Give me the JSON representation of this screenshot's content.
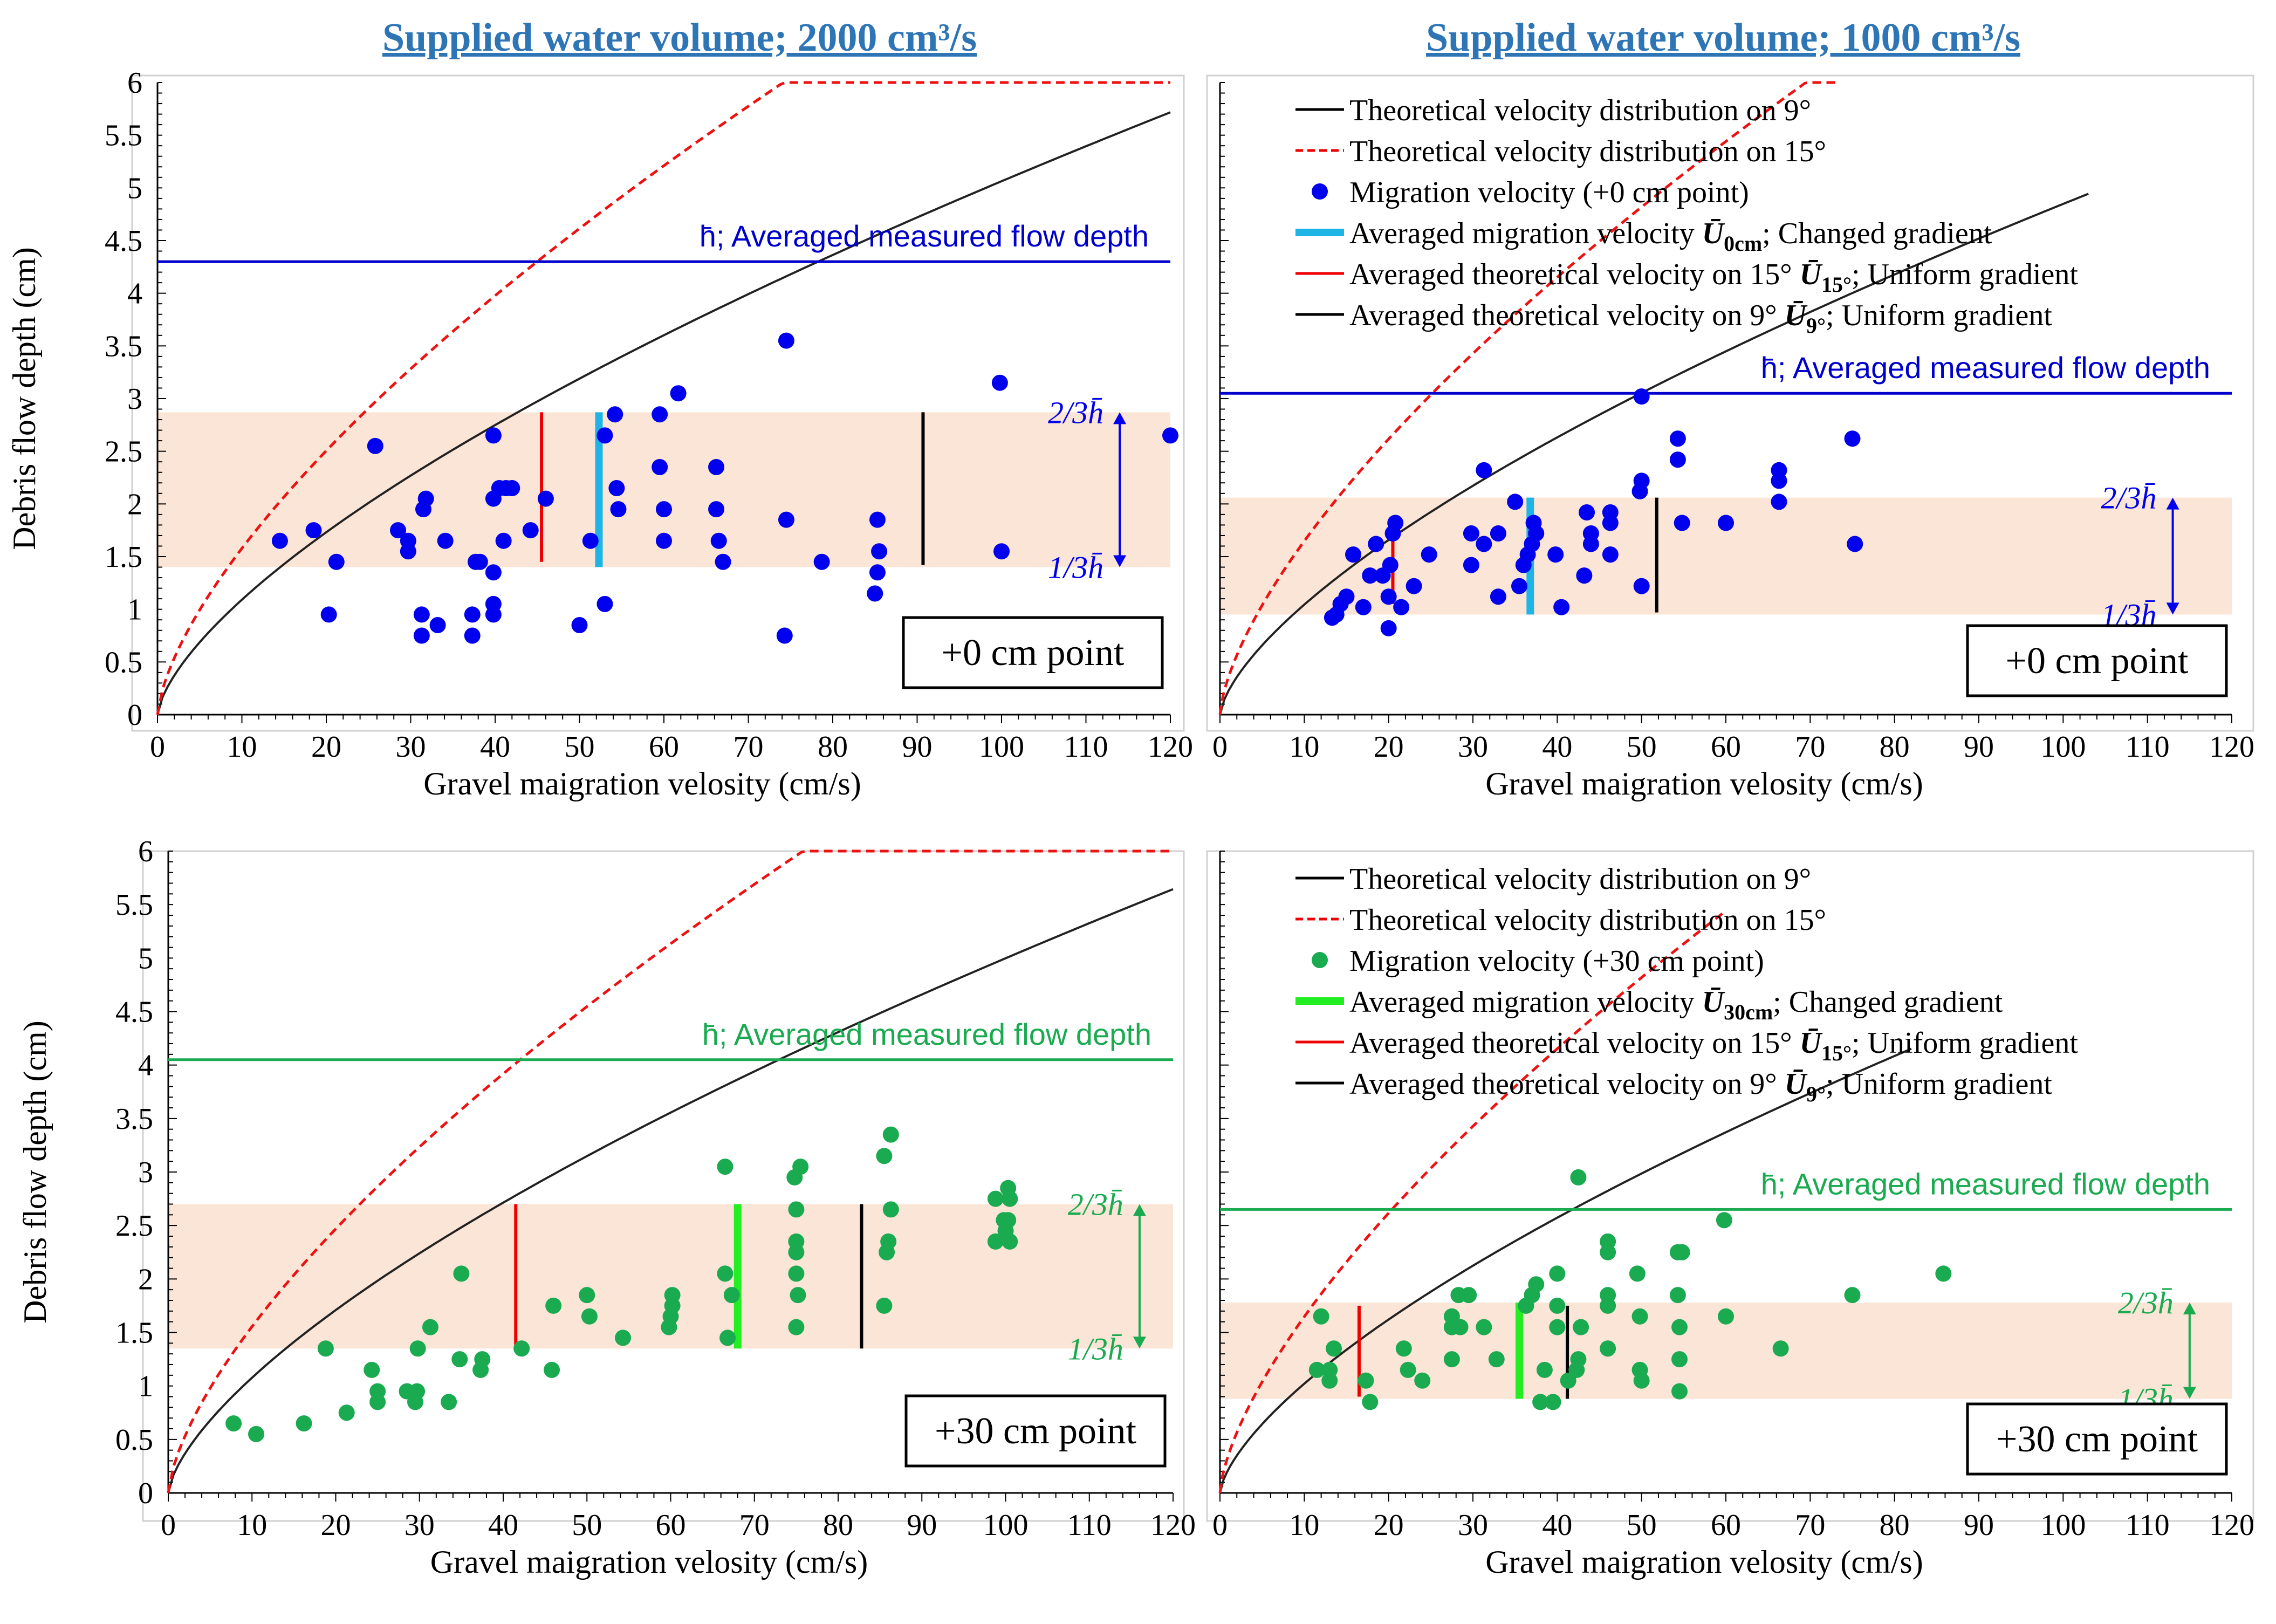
{
  "headings": {
    "left": "Supplied water volume; 2000 cm³/s",
    "right": "Supplied water volume; 1000 cm³/s"
  },
  "chart_data": [
    {
      "type": "scatter",
      "id": "tl",
      "title": "",
      "xlabel": "Gravel maigration velosity (cm/s)",
      "ylabel": "Debris flow depth (cm)",
      "xlim": [
        0,
        120
      ],
      "ylim": [
        0,
        6
      ],
      "xticks": [
        "0",
        "10",
        "20",
        "30",
        "40",
        "50",
        "60",
        "70",
        "80",
        "90",
        "100",
        "110",
        "120"
      ],
      "yticks": [
        "0",
        "0.5",
        "1",
        "1.5",
        "2",
        "2.5",
        "3",
        "3.5",
        "4",
        "4.5",
        "5",
        "5.5",
        "6"
      ],
      "point_label": "+0 cm point",
      "point_color": "#0000EE",
      "band": [
        1.4,
        2.87
      ],
      "band_labels": {
        "upper": "2/3h̄",
        "lower": "1/3h̄"
      },
      "band_arrow_x": 114,
      "hbar": {
        "y": 4.3,
        "label": "h̄; Averaged measured flow depth",
        "color": "#0000CC"
      },
      "curves": {
        "theory9": {
          "coef": 0.235,
          "xmax": 120
        },
        "theory15": {
          "coef": 0.34,
          "xmax": 120
        }
      },
      "vlines": [
        {
          "name": "U15",
          "x": 45.5,
          "y0": 1.45,
          "y1": 2.87,
          "color": "#EE0000"
        },
        {
          "name": "U0cm",
          "x": 52.3,
          "y0": 1.4,
          "y1": 2.87,
          "color": "#1FB4E6"
        },
        {
          "name": "U9",
          "x": 90.7,
          "y0": 1.42,
          "y1": 2.87,
          "color": "#000000"
        }
      ],
      "points": [
        [
          14.5,
          1.65
        ],
        [
          18.5,
          1.75
        ],
        [
          20.3,
          0.95
        ],
        [
          21.2,
          1.45
        ],
        [
          25.8,
          2.55
        ],
        [
          28.5,
          1.75
        ],
        [
          29.7,
          1.55
        ],
        [
          29.7,
          1.65
        ],
        [
          31.3,
          0.95
        ],
        [
          31.3,
          0.75
        ],
        [
          31.5,
          1.95
        ],
        [
          31.8,
          2.05
        ],
        [
          33.2,
          0.85
        ],
        [
          34.1,
          1.65
        ],
        [
          37.3,
          0.95
        ],
        [
          37.3,
          0.75
        ],
        [
          37.7,
          1.45
        ],
        [
          38.2,
          1.45
        ],
        [
          39.8,
          1.05
        ],
        [
          39.8,
          0.95
        ],
        [
          39.8,
          1.35
        ],
        [
          39.8,
          2.65
        ],
        [
          39.8,
          2.05
        ],
        [
          40.5,
          2.15
        ],
        [
          41.0,
          1.65
        ],
        [
          41.3,
          2.15
        ],
        [
          42.0,
          2.15
        ],
        [
          44.2,
          1.75
        ],
        [
          46.0,
          2.05
        ],
        [
          50.0,
          0.85
        ],
        [
          51.3,
          1.65
        ],
        [
          53.0,
          2.65
        ],
        [
          53.0,
          1.05
        ],
        [
          54.2,
          2.85
        ],
        [
          54.4,
          2.15
        ],
        [
          54.6,
          1.95
        ],
        [
          59.5,
          2.85
        ],
        [
          59.5,
          2.35
        ],
        [
          60.0,
          1.65
        ],
        [
          60.0,
          1.95
        ],
        [
          61.7,
          3.05
        ],
        [
          66.2,
          2.35
        ],
        [
          66.2,
          1.95
        ],
        [
          66.5,
          1.65
        ],
        [
          67.0,
          1.45
        ],
        [
          74.5,
          3.55
        ],
        [
          74.5,
          1.85
        ],
        [
          74.3,
          0.75
        ],
        [
          78.7,
          1.45
        ],
        [
          85.3,
          1.85
        ],
        [
          85.5,
          1.55
        ],
        [
          85.3,
          1.35
        ],
        [
          85.0,
          1.15
        ],
        [
          99.8,
          3.15
        ],
        [
          100.0,
          1.55
        ],
        [
          120.0,
          2.65
        ]
      ]
    },
    {
      "type": "scatter",
      "id": "tr",
      "title": "",
      "xlabel": "Gravel maigration velosity (cm/s)",
      "ylabel": "",
      "xlim": [
        0,
        120
      ],
      "ylim": [
        0,
        6
      ],
      "xticks": [
        "0",
        "10",
        "20",
        "30",
        "40",
        "50",
        "60",
        "70",
        "80",
        "90",
        "100",
        "110",
        "120"
      ],
      "point_label": "+0 cm point",
      "point_color": "#0000EE",
      "band": [
        0.95,
        2.06
      ],
      "band_labels": {
        "upper": "2/3h̄",
        "lower": "1/3h̄"
      },
      "band_arrow_x": 113,
      "hbar": {
        "y": 3.05,
        "label": "h̄; Averaged measured flow depth",
        "color": "#0000CC"
      },
      "curves": {
        "theory9": {
          "coef": 0.225,
          "xmax": 103
        },
        "theory15": {
          "coef": 0.355,
          "xmax": 73
        }
      },
      "vlines": [
        {
          "name": "U15",
          "x": 20.5,
          "y0": 1.05,
          "y1": 1.85,
          "color": "#EE0000"
        },
        {
          "name": "U0cm",
          "x": 36.8,
          "y0": 0.95,
          "y1": 2.06,
          "color": "#1FB4E6"
        },
        {
          "name": "U9",
          "x": 51.8,
          "y0": 0.97,
          "y1": 2.06,
          "color": "#000000"
        }
      ],
      "legend": [
        {
          "kind": "line",
          "color": "#000000",
          "label": "Theoretical velocity distribution on 9°"
        },
        {
          "kind": "dash",
          "color": "#EE0000",
          "label": "Theoretical velocity distribution on 15°"
        },
        {
          "kind": "dot",
          "color": "#0000EE",
          "label": "Migration velocity (+0 cm point)"
        },
        {
          "kind": "bar",
          "color": "#1FB4E6",
          "label": "Averaged migration velocity ",
          "math": "Ū",
          "sub": "0cm",
          "tail": "; Changed gradient"
        },
        {
          "kind": "line",
          "color": "#EE0000",
          "label": "Averaged theoretical velocity on 15° ",
          "math": "Ū",
          "sub": "15°",
          "tail": "; Uniform gradient"
        },
        {
          "kind": "line",
          "color": "#000000",
          "label": "Averaged theoretical velocity on 9° ",
          "math": "Ū",
          "sub": "9°",
          "tail": "; Uniform gradient"
        }
      ],
      "points": [
        [
          13.3,
          0.92
        ],
        [
          13.8,
          0.95
        ],
        [
          14.3,
          1.05
        ],
        [
          15.0,
          1.12
        ],
        [
          15.8,
          1.52
        ],
        [
          17.0,
          1.02
        ],
        [
          17.8,
          1.32
        ],
        [
          18.5,
          1.62
        ],
        [
          19.3,
          1.32
        ],
        [
          20.0,
          0.82
        ],
        [
          20.0,
          1.12
        ],
        [
          20.2,
          1.42
        ],
        [
          20.5,
          1.72
        ],
        [
          20.8,
          1.82
        ],
        [
          21.5,
          1.02
        ],
        [
          23.0,
          1.22
        ],
        [
          24.8,
          1.52
        ],
        [
          29.8,
          1.42
        ],
        [
          29.8,
          1.72
        ],
        [
          31.3,
          2.32
        ],
        [
          31.3,
          1.62
        ],
        [
          33.0,
          1.12
        ],
        [
          33.0,
          1.72
        ],
        [
          35.0,
          2.02
        ],
        [
          35.5,
          1.22
        ],
        [
          36.0,
          1.42
        ],
        [
          36.5,
          1.52
        ],
        [
          37.0,
          1.62
        ],
        [
          37.2,
          1.82
        ],
        [
          37.5,
          1.72
        ],
        [
          39.8,
          1.52
        ],
        [
          40.5,
          1.02
        ],
        [
          43.2,
          1.32
        ],
        [
          43.5,
          1.92
        ],
        [
          44.0,
          1.62
        ],
        [
          44.0,
          1.72
        ],
        [
          46.3,
          1.52
        ],
        [
          46.3,
          1.92
        ],
        [
          46.3,
          1.82
        ],
        [
          49.8,
          2.12
        ],
        [
          50.0,
          2.22
        ],
        [
          50.0,
          1.22
        ],
        [
          50.0,
          3.02
        ],
        [
          54.3,
          2.62
        ],
        [
          54.3,
          2.42
        ],
        [
          54.8,
          1.82
        ],
        [
          60.0,
          1.82
        ],
        [
          66.3,
          2.32
        ],
        [
          66.3,
          2.22
        ],
        [
          66.3,
          2.02
        ],
        [
          75.0,
          2.62
        ],
        [
          75.3,
          1.62
        ]
      ]
    },
    {
      "type": "scatter",
      "id": "bl",
      "title": "",
      "xlabel": "Gravel maigration velosity (cm/s)",
      "ylabel": "Debris flow depth (cm)",
      "xlim": [
        0,
        120
      ],
      "ylim": [
        0,
        6
      ],
      "xticks": [
        "0",
        "10",
        "20",
        "30",
        "40",
        "50",
        "60",
        "70",
        "80",
        "90",
        "100",
        "110",
        "120"
      ],
      "yticks": [
        "0",
        "0.5",
        "1",
        "1.5",
        "2",
        "2.5",
        "3",
        "3.5",
        "4",
        "4.5",
        "5",
        "5.5",
        "6"
      ],
      "point_label": "+30 cm point",
      "point_color": "#1AAA50",
      "band": [
        1.35,
        2.7
      ],
      "band_labels": {
        "upper": "2/3h̄",
        "lower": "1/3h̄"
      },
      "band_arrow_x": 116,
      "hbar": {
        "y": 4.05,
        "label": "h̄; Averaged measured flow depth",
        "color": "#1AAA50"
      },
      "curves": {
        "theory9": {
          "coef": 0.232,
          "xmax": 120
        },
        "theory15": {
          "coef": 0.335,
          "xmax": 120
        }
      },
      "vlines": [
        {
          "name": "U15",
          "x": 41.5,
          "y0": 1.35,
          "y1": 2.7,
          "color": "#EE0000"
        },
        {
          "name": "U30cm",
          "x": 68.0,
          "y0": 1.35,
          "y1": 2.7,
          "color": "#22EE22"
        },
        {
          "name": "U9",
          "x": 82.8,
          "y0": 1.35,
          "y1": 2.7,
          "color": "#000000"
        }
      ],
      "points": [
        [
          7.8,
          0.65
        ],
        [
          10.5,
          0.55
        ],
        [
          16.2,
          0.65
        ],
        [
          18.8,
          1.35
        ],
        [
          21.3,
          0.75
        ],
        [
          24.3,
          1.15
        ],
        [
          25.0,
          0.85
        ],
        [
          25.0,
          0.95
        ],
        [
          28.5,
          0.95
        ],
        [
          29.5,
          0.85
        ],
        [
          29.7,
          0.95
        ],
        [
          29.8,
          1.35
        ],
        [
          31.3,
          1.55
        ],
        [
          33.5,
          0.85
        ],
        [
          34.8,
          1.25
        ],
        [
          35.0,
          2.05
        ],
        [
          37.3,
          1.15
        ],
        [
          37.5,
          1.25
        ],
        [
          42.2,
          1.35
        ],
        [
          45.8,
          1.15
        ],
        [
          46.0,
          1.75
        ],
        [
          50.0,
          1.85
        ],
        [
          50.3,
          1.65
        ],
        [
          54.3,
          1.45
        ],
        [
          59.8,
          1.55
        ],
        [
          60.0,
          1.65
        ],
        [
          60.2,
          1.75
        ],
        [
          60.2,
          1.85
        ],
        [
          66.5,
          3.05
        ],
        [
          66.5,
          2.05
        ],
        [
          66.8,
          1.45
        ],
        [
          67.3,
          1.85
        ],
        [
          74.8,
          2.95
        ],
        [
          75.0,
          2.65
        ],
        [
          75.0,
          2.35
        ],
        [
          75.0,
          2.25
        ],
        [
          75.0,
          2.05
        ],
        [
          75.2,
          1.85
        ],
        [
          75.0,
          1.55
        ],
        [
          75.5,
          3.05
        ],
        [
          85.5,
          3.15
        ],
        [
          85.8,
          2.25
        ],
        [
          86.0,
          2.35
        ],
        [
          86.3,
          2.65
        ],
        [
          86.3,
          3.35
        ],
        [
          85.5,
          1.75
        ],
        [
          98.8,
          2.75
        ],
        [
          98.8,
          2.35
        ],
        [
          99.8,
          2.55
        ],
        [
          100.0,
          2.45
        ],
        [
          100.3,
          2.85
        ],
        [
          100.5,
          2.75
        ],
        [
          100.5,
          2.35
        ],
        [
          100.3,
          2.55
        ]
      ]
    },
    {
      "type": "scatter",
      "id": "br",
      "title": "",
      "xlabel": "Gravel maigration velosity (cm/s)",
      "ylabel": "",
      "xlim": [
        0,
        120
      ],
      "ylim": [
        0,
        6
      ],
      "xticks": [
        "0",
        "10",
        "20",
        "30",
        "40",
        "50",
        "60",
        "70",
        "80",
        "90",
        "100",
        "110",
        "120"
      ],
      "point_label": "+30 cm point",
      "point_color": "#1AAA50",
      "band": [
        0.88,
        1.78
      ],
      "band_labels": {
        "upper": "2/3h̄",
        "lower": "1/3h̄"
      },
      "band_arrow_x": 115,
      "hbar": {
        "y": 2.65,
        "label": "h̄;  Averaged measured flow depth",
        "color": "#1AAA50"
      },
      "curves": {
        "theory9": {
          "coef": 0.22,
          "xmax": 82
        },
        "theory15": {
          "coef": 0.355,
          "xmax": 60
        }
      },
      "vlines": [
        {
          "name": "U15",
          "x": 16.5,
          "y0": 0.9,
          "y1": 1.75,
          "color": "#EE0000"
        },
        {
          "name": "U30cm",
          "x": 35.5,
          "y0": 0.88,
          "y1": 1.78,
          "color": "#22EE22"
        },
        {
          "name": "U9",
          "x": 41.2,
          "y0": 0.88,
          "y1": 1.75,
          "color": "#000000"
        }
      ],
      "legend": [
        {
          "kind": "line",
          "color": "#000000",
          "label": "Theoretical velocity distribution on 9°"
        },
        {
          "kind": "dash",
          "color": "#EE0000",
          "label": "Theoretical velocity distribution on 15°"
        },
        {
          "kind": "dot",
          "color": "#1AAA50",
          "label": "Migration velocity (+30 cm point)"
        },
        {
          "kind": "bar",
          "color": "#22EE22",
          "label": "Averaged migration velocity ",
          "math": "Ū",
          "sub": "30cm",
          "tail": "; Changed gradient"
        },
        {
          "kind": "line",
          "color": "#EE0000",
          "label": "Averaged theoretical velocity on 15° ",
          "math": "Ū",
          "sub": "15°",
          "tail": "; Uniform gradient"
        },
        {
          "kind": "line",
          "color": "#000000",
          "label": "Averaged theoretical velocity on 9° ",
          "math": "Ū",
          "sub": "9°",
          "tail": "; Uniform gradient"
        }
      ],
      "points": [
        [
          11.5,
          1.15
        ],
        [
          12.0,
          1.65
        ],
        [
          13.0,
          1.15
        ],
        [
          13.0,
          1.05
        ],
        [
          13.5,
          1.35
        ],
        [
          17.3,
          1.05
        ],
        [
          17.8,
          0.85
        ],
        [
          21.8,
          1.35
        ],
        [
          22.3,
          1.15
        ],
        [
          24.0,
          1.05
        ],
        [
          27.5,
          1.25
        ],
        [
          27.5,
          1.55
        ],
        [
          27.5,
          1.65
        ],
        [
          28.3,
          1.85
        ],
        [
          28.5,
          1.55
        ],
        [
          29.5,
          1.85
        ],
        [
          31.3,
          1.55
        ],
        [
          32.8,
          1.25
        ],
        [
          36.3,
          1.75
        ],
        [
          37.0,
          1.85
        ],
        [
          37.5,
          1.95
        ],
        [
          38.0,
          0.85
        ],
        [
          38.5,
          1.15
        ],
        [
          39.5,
          0.85
        ],
        [
          40.0,
          2.05
        ],
        [
          40.0,
          1.75
        ],
        [
          40.0,
          1.55
        ],
        [
          41.3,
          1.05
        ],
        [
          42.3,
          1.15
        ],
        [
          42.5,
          1.25
        ],
        [
          42.8,
          1.55
        ],
        [
          42.5,
          2.95
        ],
        [
          46.0,
          2.35
        ],
        [
          46.0,
          2.25
        ],
        [
          46.0,
          1.85
        ],
        [
          46.0,
          1.75
        ],
        [
          46.0,
          1.35
        ],
        [
          49.5,
          2.05
        ],
        [
          49.8,
          1.65
        ],
        [
          49.8,
          1.15
        ],
        [
          50.0,
          1.05
        ],
        [
          54.3,
          2.25
        ],
        [
          54.8,
          2.25
        ],
        [
          54.3,
          1.85
        ],
        [
          54.5,
          1.55
        ],
        [
          54.5,
          1.25
        ],
        [
          54.5,
          0.95
        ],
        [
          59.8,
          2.55
        ],
        [
          60.0,
          1.65
        ],
        [
          66.5,
          1.35
        ],
        [
          75.0,
          1.85
        ],
        [
          85.8,
          2.05
        ]
      ]
    }
  ]
}
